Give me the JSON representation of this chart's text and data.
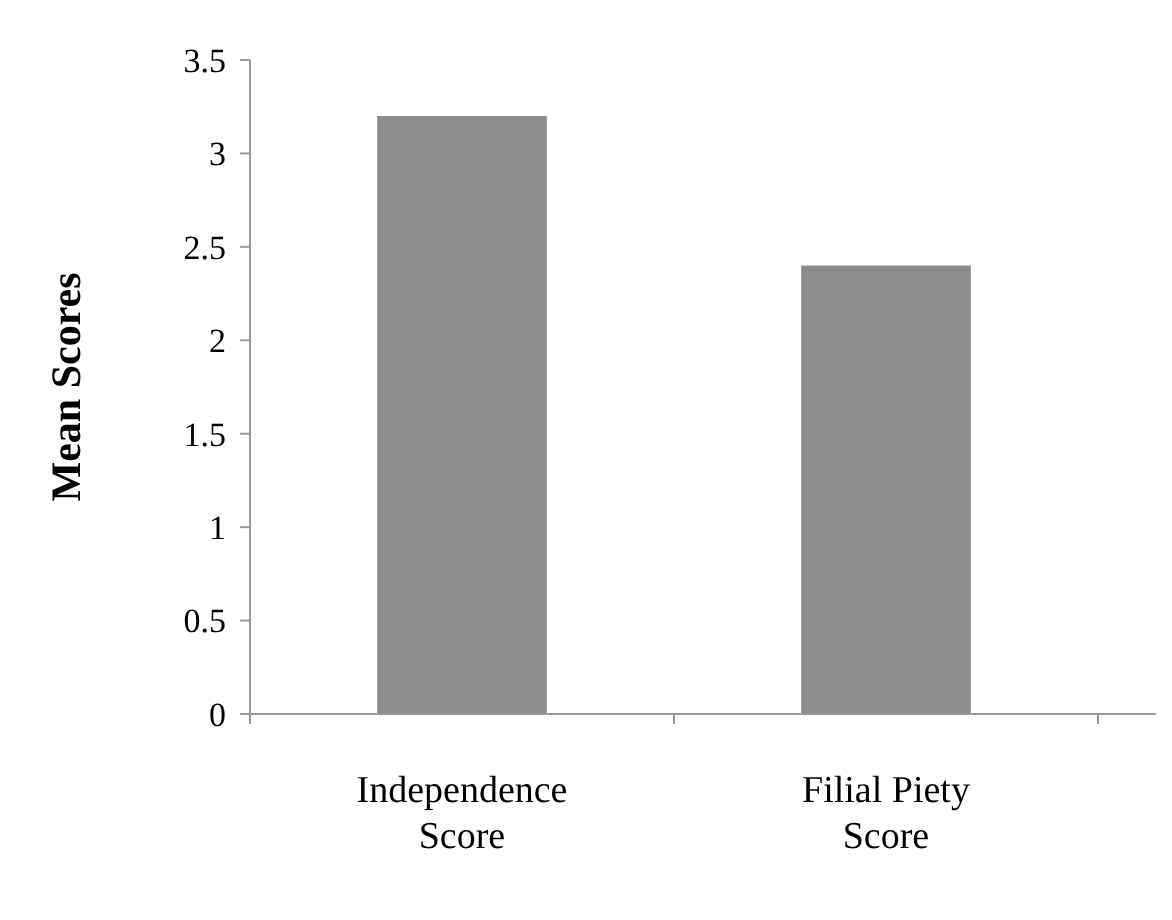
{
  "chart_data": {
    "type": "bar",
    "ylabel": "Mean Scores",
    "categories": [
      "Independence Score",
      "Filial Piety Score"
    ],
    "values": [
      3.2,
      2.4
    ],
    "color": "#8c8c8c",
    "ylim": [
      0,
      3.5
    ],
    "yticks": [
      0,
      0.5,
      1,
      1.5,
      2,
      2.5,
      3,
      3.5
    ],
    "grid": false
  }
}
